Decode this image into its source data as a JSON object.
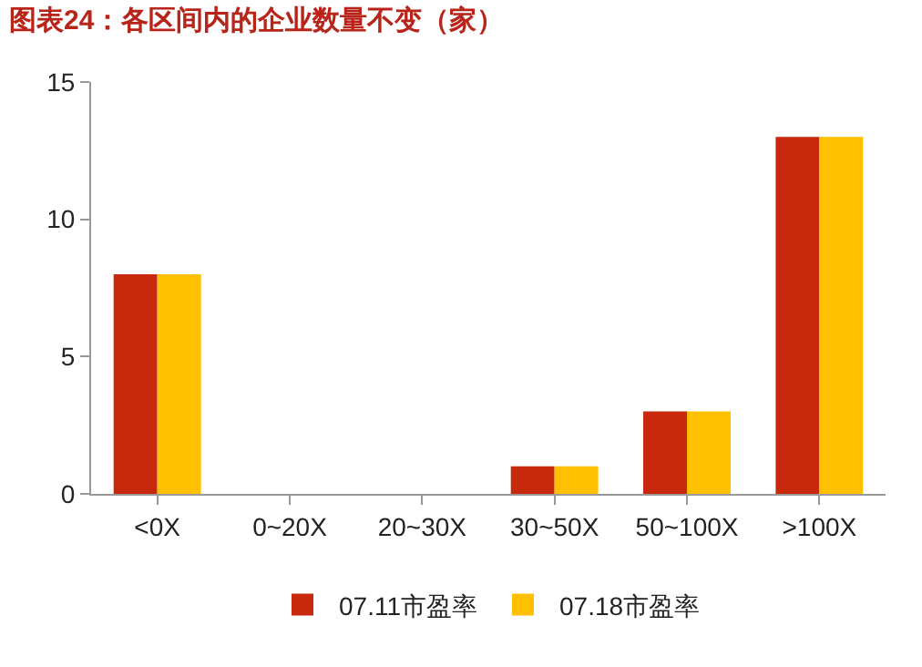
{
  "chart_data": {
    "type": "bar",
    "title": "图表24：各区间内的企业数量不变（家）",
    "categories": [
      "<0X",
      "0~20X",
      "20~30X",
      "30~50X",
      "50~100X",
      ">100X"
    ],
    "series": [
      {
        "name": "07.11市盈率",
        "color": "#c8280c",
        "values": [
          8,
          0,
          0,
          1,
          3,
          13
        ]
      },
      {
        "name": "07.18市盈率",
        "color": "#ffc000",
        "values": [
          8,
          0,
          0,
          1,
          3,
          13
        ]
      }
    ],
    "ylim": [
      0,
      15
    ],
    "yticks": [
      0,
      5,
      10,
      15
    ],
    "grid": false,
    "legend": "bottom"
  }
}
